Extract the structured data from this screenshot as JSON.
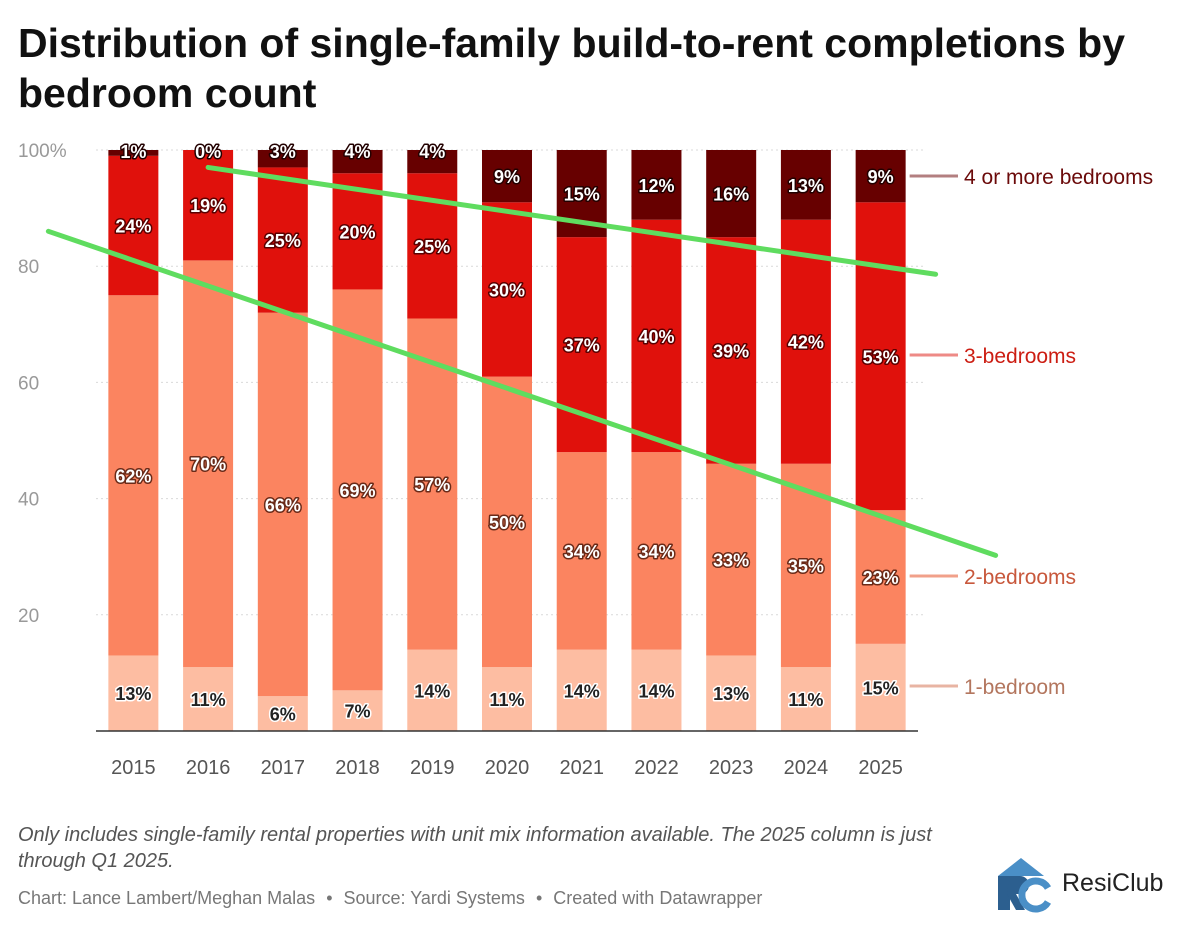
{
  "title": "Distribution of single-family build-to-rent completions by bedroom count",
  "note": "Only includes single-family rental properties with unit mix information available. The 2025 column is just through Q1 2025.",
  "credits": {
    "chart": "Chart: Lance Lambert/Meghan Malas",
    "separator": "•",
    "source": "Source: Yardi Systems",
    "tool": "Created with Datawrapper"
  },
  "logo": {
    "text": "ResiClub",
    "icon": "resiclub-logo-icon"
  },
  "colors": {
    "one_bedroom": "#fdbda2",
    "two_bedrooms": "#fb8460",
    "three_bedrooms": "#e0110c",
    "four_plus": "#670000",
    "trend_line": "#5fdc5f",
    "grid": "#d9d9d9",
    "axis_text": "#999999"
  },
  "chart_data": {
    "type": "bar",
    "stacked": true,
    "categories": [
      "2015",
      "2016",
      "2017",
      "2018",
      "2019",
      "2020",
      "2021",
      "2022",
      "2023",
      "2024",
      "2025"
    ],
    "series": [
      {
        "name": "1-bedroom",
        "values": [
          13,
          11,
          6,
          7,
          14,
          11,
          14,
          14,
          13,
          11,
          15
        ],
        "labels": [
          "13%",
          "11%",
          "6%",
          "7%",
          "14%",
          "11%",
          "14%",
          "14%",
          "13%",
          "11%",
          "15%"
        ]
      },
      {
        "name": "2-bedrooms",
        "values": [
          62,
          70,
          66,
          69,
          57,
          50,
          34,
          34,
          33,
          35,
          23
        ],
        "labels": [
          "62%",
          "70%",
          "66%",
          "69%",
          "57%",
          "50%",
          "34%",
          "34%",
          "33%",
          "35%",
          "23%"
        ]
      },
      {
        "name": "3-bedrooms",
        "values": [
          24,
          19,
          25,
          20,
          25,
          30,
          37,
          40,
          39,
          42,
          53
        ],
        "labels": [
          "24%",
          "19%",
          "25%",
          "20%",
          "25%",
          "30%",
          "37%",
          "40%",
          "39%",
          "42%",
          "53%"
        ]
      },
      {
        "name": "4 or more bedrooms",
        "values": [
          1,
          0,
          3,
          4,
          4,
          9,
          15,
          12,
          16,
          13,
          9
        ],
        "labels": [
          "1%",
          "0%",
          "3%",
          "4%",
          "4%",
          "9%",
          "15%",
          "12%",
          "16%",
          "13%",
          "9%"
        ]
      }
    ],
    "ylim": [
      0,
      100
    ],
    "yticks": [
      20,
      40,
      60,
      80,
      100
    ],
    "ytick_labels": [
      "20",
      "40",
      "60",
      "80",
      "100%"
    ],
    "xlabel": "",
    "ylabel": "",
    "grid": true,
    "legend": "right, direct labels",
    "annotations": [
      {
        "type": "trend-line",
        "from": {
          "x": "2015",
          "y": 81
        },
        "to": {
          "x": "2025",
          "y": 37
        }
      },
      {
        "type": "trend-line",
        "from": {
          "x": "2016",
          "y": 97
        },
        "to": {
          "x": "2025",
          "y": 80
        }
      }
    ]
  }
}
